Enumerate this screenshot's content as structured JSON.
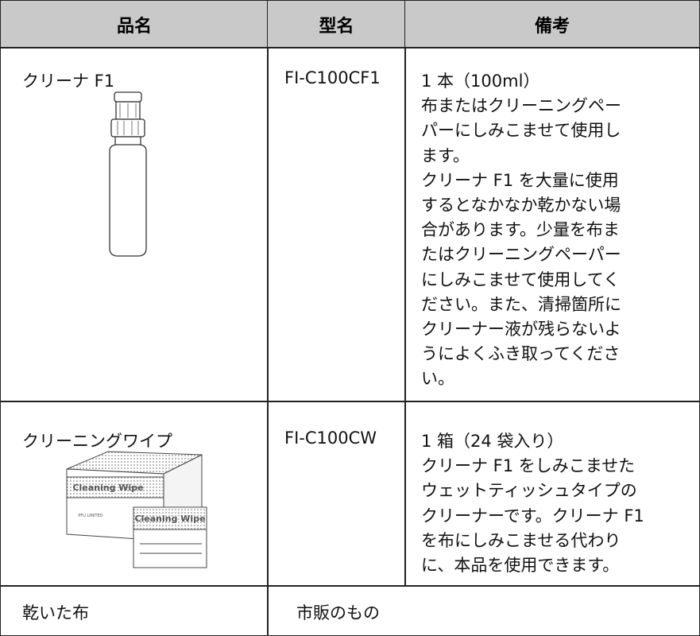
{
  "table": {
    "headers": [
      "品名",
      "型名",
      "備考"
    ],
    "rows": [
      [
        "クリーナ F1",
        "FI-C100CF1",
        [
          "1 本（100ml）",
          "布またはクリーニングペー",
          "パーにしみこませて使用し",
          "ます。",
          "クリーナ F1 を大量に使用",
          "するとなかなか乾かない場",
          "合があります。少量を布ま",
          "たはクリーニングペーパー",
          "にしみこませて使用してく",
          "ださい。また、清掃箇所に",
          "クリーナー液が残らないよ",
          "うによくふき取ってくださ",
          "い。"
        ]
      ],
      [
        "クリーニングワイプ",
        "FI-C100CW",
        [
          "1 箱（24 袋入り）",
          "クリーナ F1 をしみこませた",
          "ウェットティッシュタイプの",
          "クリーナーです。クリーナ F1",
          "を布にしみこませる代わり",
          "に、本品を使用できます。"
        ]
      ],
      [
        "乾いた布",
        "市販のもの"
      ]
    ]
  },
  "images": {
    "wipe_label": "Cleaning Wipe",
    "wipe_maker": "PFU LIMITED"
  }
}
